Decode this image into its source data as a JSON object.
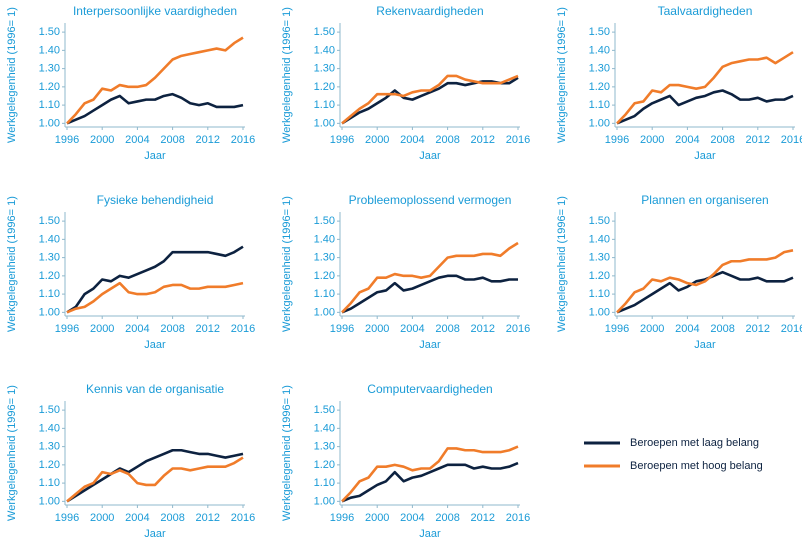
{
  "legend": [
    {
      "name": "Beroepen met laag belang",
      "color": "#0d2240"
    },
    {
      "name": "Beroepen met hoog belang",
      "color": "#f07c2a"
    }
  ],
  "chart_data": [
    {
      "type": "line",
      "title": "Interpersoonlijke vaardigheden",
      "xlabel": "Jaar",
      "ylabel": "Werkgelegenheid (1996= 1)",
      "x": [
        1996,
        1997,
        1998,
        1999,
        2000,
        2001,
        2002,
        2003,
        2004,
        2005,
        2006,
        2007,
        2008,
        2009,
        2010,
        2011,
        2012,
        2013,
        2014,
        2015,
        2016
      ],
      "series": [
        {
          "values": [
            1.0,
            1.02,
            1.04,
            1.07,
            1.1,
            1.13,
            1.15,
            1.11,
            1.12,
            1.13,
            1.13,
            1.15,
            1.16,
            1.14,
            1.11,
            1.1,
            1.11,
            1.09,
            1.09,
            1.09,
            1.1
          ]
        },
        {
          "values": [
            1.0,
            1.05,
            1.11,
            1.13,
            1.19,
            1.18,
            1.21,
            1.2,
            1.2,
            1.21,
            1.25,
            1.3,
            1.35,
            1.37,
            1.38,
            1.39,
            1.4,
            1.41,
            1.4,
            1.44,
            1.47
          ]
        }
      ],
      "xlim": [
        1996,
        2016
      ],
      "ylim": [
        0.98,
        1.55
      ],
      "xticks": [
        1996,
        2000,
        2004,
        2008,
        2012,
        2016
      ],
      "yticks": [
        {
          "value": 1,
          "label": "1.00"
        },
        {
          "value": 1.1,
          "label": "1.10"
        },
        {
          "value": 1.2,
          "label": "1.20"
        },
        {
          "value": 1.3,
          "label": "1.30"
        },
        {
          "value": 1.4,
          "label": "1.40"
        },
        {
          "value": 1.5,
          "label": "1.50"
        }
      ],
      "grid": false
    },
    {
      "type": "line",
      "title": "Rekenvaardigheden",
      "xlabel": "Jaar",
      "ylabel": "Werkgelegenheid (1996= 1)",
      "x": [
        1996,
        1997,
        1998,
        1999,
        2000,
        2001,
        2002,
        2003,
        2004,
        2005,
        2006,
        2007,
        2008,
        2009,
        2010,
        2011,
        2012,
        2013,
        2014,
        2015,
        2016
      ],
      "series": [
        {
          "values": [
            1.0,
            1.03,
            1.06,
            1.08,
            1.11,
            1.14,
            1.18,
            1.14,
            1.13,
            1.15,
            1.17,
            1.19,
            1.22,
            1.22,
            1.21,
            1.22,
            1.23,
            1.23,
            1.22,
            1.22,
            1.25
          ]
        },
        {
          "values": [
            1.0,
            1.04,
            1.08,
            1.11,
            1.16,
            1.16,
            1.16,
            1.15,
            1.17,
            1.18,
            1.18,
            1.21,
            1.26,
            1.26,
            1.24,
            1.23,
            1.22,
            1.22,
            1.22,
            1.24,
            1.26
          ]
        }
      ],
      "xlim": [
        1996,
        2016
      ],
      "ylim": [
        0.98,
        1.55
      ],
      "xticks": [
        1996,
        2000,
        2004,
        2008,
        2012,
        2016
      ],
      "yticks": [
        {
          "value": 1,
          "label": "1.00"
        },
        {
          "value": 1.1,
          "label": "1.10"
        },
        {
          "value": 1.2,
          "label": "1.20"
        },
        {
          "value": 1.3,
          "label": "1.30"
        },
        {
          "value": 1.4,
          "label": "1.40"
        },
        {
          "value": 1.5,
          "label": "1.50"
        }
      ],
      "grid": false
    },
    {
      "type": "line",
      "title": "Taalvaardigheden",
      "xlabel": "Jaar",
      "ylabel": "Werkgelegenheid (1996= 1)",
      "x": [
        1996,
        1997,
        1998,
        1999,
        2000,
        2001,
        2002,
        2003,
        2004,
        2005,
        2006,
        2007,
        2008,
        2009,
        2010,
        2011,
        2012,
        2013,
        2014,
        2015,
        2016
      ],
      "series": [
        {
          "values": [
            1.0,
            1.02,
            1.04,
            1.08,
            1.11,
            1.13,
            1.15,
            1.1,
            1.12,
            1.14,
            1.15,
            1.17,
            1.18,
            1.16,
            1.13,
            1.13,
            1.14,
            1.12,
            1.13,
            1.13,
            1.15
          ]
        },
        {
          "values": [
            1.0,
            1.05,
            1.11,
            1.12,
            1.18,
            1.17,
            1.21,
            1.21,
            1.2,
            1.19,
            1.2,
            1.25,
            1.31,
            1.33,
            1.34,
            1.35,
            1.35,
            1.36,
            1.33,
            1.36,
            1.39
          ]
        }
      ],
      "xlim": [
        1996,
        2016
      ],
      "ylim": [
        0.98,
        1.55
      ],
      "xticks": [
        1996,
        2000,
        2004,
        2008,
        2012,
        2016
      ],
      "yticks": [
        {
          "value": 1,
          "label": "1.00"
        },
        {
          "value": 1.1,
          "label": "1.10"
        },
        {
          "value": 1.2,
          "label": "1.20"
        },
        {
          "value": 1.3,
          "label": "1.30"
        },
        {
          "value": 1.4,
          "label": "1.40"
        },
        {
          "value": 1.5,
          "label": "1.50"
        }
      ],
      "grid": false
    },
    {
      "type": "line",
      "title": "Fysieke behendigheid",
      "xlabel": "Jaar",
      "ylabel": "Werkgelegenheid (1996= 1)",
      "x": [
        1996,
        1997,
        1998,
        1999,
        2000,
        2001,
        2002,
        2003,
        2004,
        2005,
        2006,
        2007,
        2008,
        2009,
        2010,
        2011,
        2012,
        2013,
        2014,
        2015,
        2016
      ],
      "series": [
        {
          "values": [
            1.0,
            1.03,
            1.1,
            1.13,
            1.18,
            1.17,
            1.2,
            1.19,
            1.21,
            1.23,
            1.25,
            1.28,
            1.33,
            1.33,
            1.33,
            1.33,
            1.33,
            1.32,
            1.31,
            1.33,
            1.36
          ]
        },
        {
          "values": [
            1.0,
            1.02,
            1.03,
            1.06,
            1.1,
            1.13,
            1.16,
            1.11,
            1.1,
            1.1,
            1.11,
            1.14,
            1.15,
            1.15,
            1.13,
            1.13,
            1.14,
            1.14,
            1.14,
            1.15,
            1.16
          ]
        }
      ],
      "xlim": [
        1996,
        2016
      ],
      "ylim": [
        0.98,
        1.55
      ],
      "xticks": [
        1996,
        2000,
        2004,
        2008,
        2012,
        2016
      ],
      "yticks": [
        {
          "value": 1,
          "label": "1.00"
        },
        {
          "value": 1.1,
          "label": "1.10"
        },
        {
          "value": 1.2,
          "label": "1.20"
        },
        {
          "value": 1.3,
          "label": "1.30"
        },
        {
          "value": 1.4,
          "label": "1.40"
        },
        {
          "value": 1.5,
          "label": "1.50"
        }
      ],
      "grid": false
    },
    {
      "type": "line",
      "title": "Probleemoplossend vermogen",
      "xlabel": "Jaar",
      "ylabel": "Werkgelegenheid (1996= 1)",
      "x": [
        1996,
        1997,
        1998,
        1999,
        2000,
        2001,
        2002,
        2003,
        2004,
        2005,
        2006,
        2007,
        2008,
        2009,
        2010,
        2011,
        2012,
        2013,
        2014,
        2015,
        2016
      ],
      "series": [
        {
          "values": [
            1.0,
            1.02,
            1.05,
            1.08,
            1.11,
            1.12,
            1.16,
            1.12,
            1.13,
            1.15,
            1.17,
            1.19,
            1.2,
            1.2,
            1.18,
            1.18,
            1.19,
            1.17,
            1.17,
            1.18,
            1.18
          ]
        },
        {
          "values": [
            1.0,
            1.05,
            1.11,
            1.13,
            1.19,
            1.19,
            1.21,
            1.2,
            1.2,
            1.19,
            1.2,
            1.25,
            1.3,
            1.31,
            1.31,
            1.31,
            1.32,
            1.32,
            1.31,
            1.35,
            1.38
          ]
        }
      ],
      "xlim": [
        1996,
        2016
      ],
      "ylim": [
        0.98,
        1.55
      ],
      "xticks": [
        1996,
        2000,
        2004,
        2008,
        2012,
        2016
      ],
      "yticks": [
        {
          "value": 1,
          "label": "1.00"
        },
        {
          "value": 1.1,
          "label": "1.10"
        },
        {
          "value": 1.2,
          "label": "1.20"
        },
        {
          "value": 1.3,
          "label": "1.30"
        },
        {
          "value": 1.4,
          "label": "1.40"
        },
        {
          "value": 1.5,
          "label": "1.50"
        }
      ],
      "grid": false
    },
    {
      "type": "line",
      "title": "Plannen en organiseren",
      "xlabel": "Jaar",
      "ylabel": "Werkgelegenheid (1996= 1)",
      "x": [
        1996,
        1997,
        1998,
        1999,
        2000,
        2001,
        2002,
        2003,
        2004,
        2005,
        2006,
        2007,
        2008,
        2009,
        2010,
        2011,
        2012,
        2013,
        2014,
        2015,
        2016
      ],
      "series": [
        {
          "values": [
            1.0,
            1.02,
            1.04,
            1.07,
            1.1,
            1.13,
            1.16,
            1.12,
            1.14,
            1.17,
            1.18,
            1.2,
            1.22,
            1.2,
            1.18,
            1.18,
            1.19,
            1.17,
            1.17,
            1.17,
            1.19
          ]
        },
        {
          "values": [
            1.0,
            1.05,
            1.11,
            1.13,
            1.18,
            1.17,
            1.19,
            1.18,
            1.16,
            1.15,
            1.17,
            1.21,
            1.26,
            1.28,
            1.28,
            1.29,
            1.29,
            1.29,
            1.3,
            1.33,
            1.34
          ]
        }
      ],
      "xlim": [
        1996,
        2016
      ],
      "ylim": [
        0.98,
        1.55
      ],
      "xticks": [
        1996,
        2000,
        2004,
        2008,
        2012,
        2016
      ],
      "yticks": [
        {
          "value": 1,
          "label": "1.00"
        },
        {
          "value": 1.1,
          "label": "1.10"
        },
        {
          "value": 1.2,
          "label": "1.20"
        },
        {
          "value": 1.3,
          "label": "1.30"
        },
        {
          "value": 1.4,
          "label": "1.40"
        },
        {
          "value": 1.5,
          "label": "1.50"
        }
      ],
      "grid": false
    },
    {
      "type": "line",
      "title": "Kennis van de organisatie",
      "xlabel": "Jaar",
      "ylabel": "Werkgelegenheid (1996= 1)",
      "x": [
        1996,
        1997,
        1998,
        1999,
        2000,
        2001,
        2002,
        2003,
        2004,
        2005,
        2006,
        2007,
        2008,
        2009,
        2010,
        2011,
        2012,
        2013,
        2014,
        2015,
        2016
      ],
      "series": [
        {
          "values": [
            1.0,
            1.03,
            1.06,
            1.09,
            1.12,
            1.15,
            1.18,
            1.16,
            1.19,
            1.22,
            1.24,
            1.26,
            1.28,
            1.28,
            1.27,
            1.26,
            1.26,
            1.25,
            1.24,
            1.25,
            1.26
          ]
        },
        {
          "values": [
            1.0,
            1.04,
            1.08,
            1.1,
            1.16,
            1.15,
            1.17,
            1.15,
            1.1,
            1.09,
            1.09,
            1.14,
            1.18,
            1.18,
            1.17,
            1.18,
            1.19,
            1.19,
            1.19,
            1.21,
            1.24
          ]
        }
      ],
      "xlim": [
        1996,
        2016
      ],
      "ylim": [
        0.98,
        1.55
      ],
      "xticks": [
        1996,
        2000,
        2004,
        2008,
        2012,
        2016
      ],
      "yticks": [
        {
          "value": 1,
          "label": "1.00"
        },
        {
          "value": 1.1,
          "label": "1.10"
        },
        {
          "value": 1.2,
          "label": "1.20"
        },
        {
          "value": 1.3,
          "label": "1.30"
        },
        {
          "value": 1.4,
          "label": "1.40"
        },
        {
          "value": 1.5,
          "label": "1.50"
        }
      ],
      "grid": false
    },
    {
      "type": "line",
      "title": "Computervaardigheden",
      "xlabel": "Jaar",
      "ylabel": "Werkgelegenheid (1996= 1)",
      "x": [
        1996,
        1997,
        1998,
        1999,
        2000,
        2001,
        2002,
        2003,
        2004,
        2005,
        2006,
        2007,
        2008,
        2009,
        2010,
        2011,
        2012,
        2013,
        2014,
        2015,
        2016
      ],
      "series": [
        {
          "values": [
            1.0,
            1.02,
            1.03,
            1.06,
            1.09,
            1.11,
            1.16,
            1.11,
            1.13,
            1.14,
            1.16,
            1.18,
            1.2,
            1.2,
            1.2,
            1.18,
            1.19,
            1.18,
            1.18,
            1.19,
            1.21
          ]
        },
        {
          "values": [
            1.0,
            1.05,
            1.11,
            1.13,
            1.19,
            1.19,
            1.2,
            1.19,
            1.17,
            1.18,
            1.18,
            1.22,
            1.29,
            1.29,
            1.28,
            1.28,
            1.27,
            1.27,
            1.27,
            1.28,
            1.3
          ]
        }
      ],
      "xlim": [
        1996,
        2016
      ],
      "ylim": [
        0.98,
        1.55
      ],
      "xticks": [
        1996,
        2000,
        2004,
        2008,
        2012,
        2016
      ],
      "yticks": [
        {
          "value": 1,
          "label": "1.00"
        },
        {
          "value": 1.1,
          "label": "1.10"
        },
        {
          "value": 1.2,
          "label": "1.20"
        },
        {
          "value": 1.3,
          "label": "1.30"
        },
        {
          "value": 1.4,
          "label": "1.40"
        },
        {
          "value": 1.5,
          "label": "1.50"
        }
      ],
      "grid": false
    }
  ]
}
